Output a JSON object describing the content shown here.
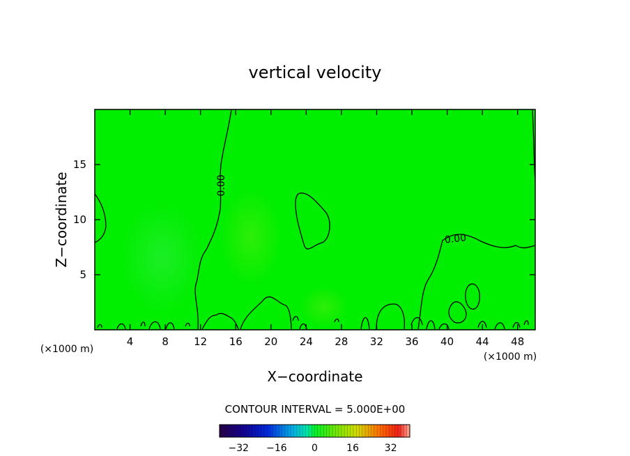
{
  "chart_data": {
    "type": "heatmap",
    "title": "vertical velocity",
    "xlabel": "X−coordinate",
    "ylabel": "Z−coordinate",
    "x_unit": "(×1000 m)",
    "xlim": [
      0,
      50
    ],
    "ylim": [
      0,
      20
    ],
    "x_ticks": [
      4,
      8,
      12,
      16,
      20,
      24,
      28,
      32,
      36,
      40,
      44,
      48
    ],
    "y_ticks": [
      5,
      10,
      15
    ],
    "contour_label": "0.00",
    "contour_interval_text": "CONTOUR INTERVAL = 5.000E+00",
    "contour_interval": 5.0,
    "colorbar": {
      "range": [
        -40,
        40
      ],
      "ticks": [
        "−32",
        "−16",
        "0",
        "16",
        "32"
      ],
      "tick_values": [
        -32,
        -16,
        0,
        16,
        32
      ]
    },
    "field_note": "near-zero field; zero-value contour drawn",
    "colors": {
      "background_field": "#00ee00",
      "contour": "#000000",
      "colorbar_low": "#2b0050",
      "colorbar_mid": "#00ff00",
      "colorbar_high": "#ff3000"
    }
  }
}
